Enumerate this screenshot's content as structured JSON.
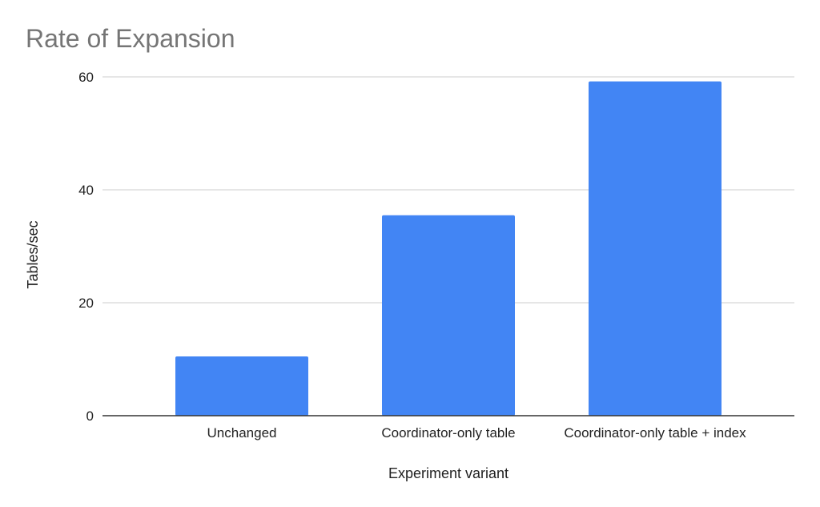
{
  "chart_data": {
    "type": "bar",
    "title": "Rate of Expansion",
    "xlabel": "Experiment variant",
    "ylabel": "Tables/sec",
    "categories": [
      "Unchanged",
      "Coordinator-only table",
      "Coordinator-only table + index"
    ],
    "values": [
      10.5,
      35.5,
      59.2
    ],
    "ylim": [
      0,
      60
    ],
    "yticks": [
      "0",
      "20",
      "40",
      "60"
    ],
    "grid": true,
    "legend": "none",
    "bar_color": "#4285f4"
  }
}
